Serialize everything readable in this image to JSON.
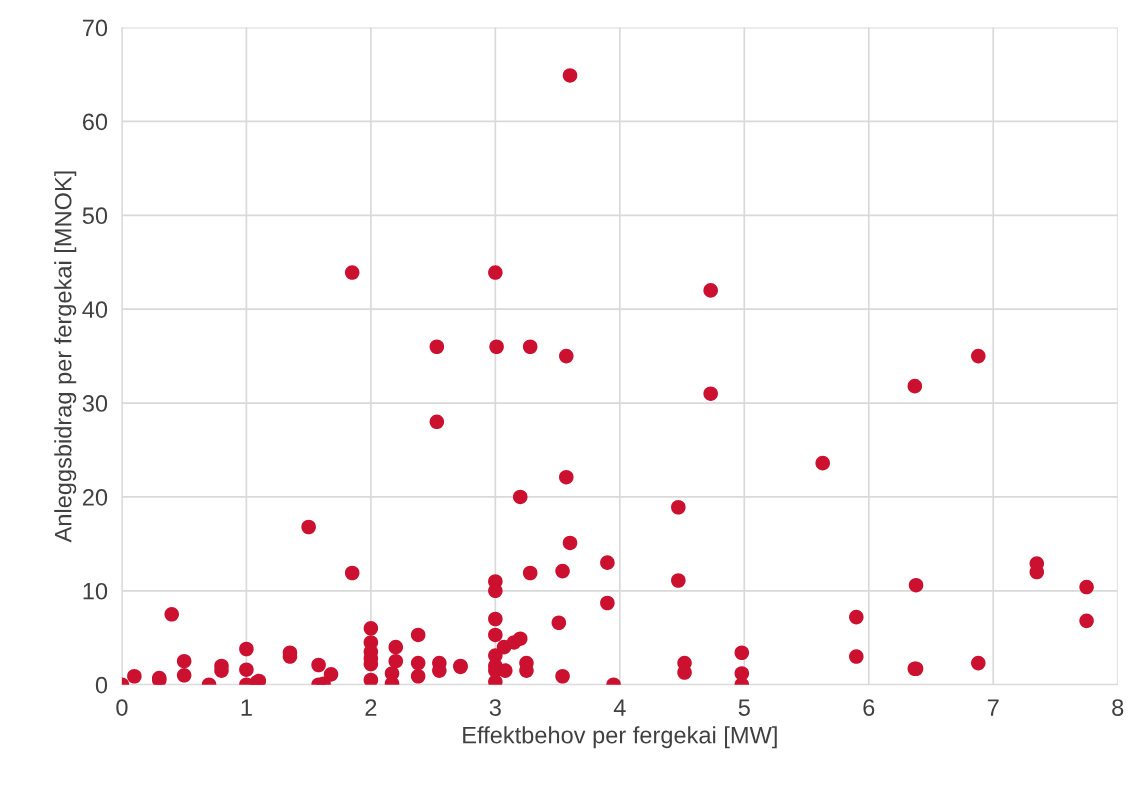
{
  "chart_data": {
    "type": "scatter",
    "xlabel": "Effektbehov per fergekai [MW]",
    "ylabel": "Anleggsbidrag per fergekai [MNOK]",
    "xlim": [
      0,
      8
    ],
    "xticks": [
      0,
      1,
      2,
      3,
      4,
      5,
      6,
      7,
      8
    ],
    "ylim": [
      0,
      70
    ],
    "yticks": [
      0,
      10,
      20,
      30,
      40,
      50,
      60,
      70
    ],
    "grid": true,
    "marker": "circle",
    "series": [
      {
        "color": "#cc1030",
        "x": [
          0,
          0.1,
          0.3,
          0.3,
          0.4,
          0.5,
          0.5,
          0.7,
          0.8,
          0.8,
          1.0,
          1.0,
          1.0,
          1.1,
          1.08,
          1.35,
          1.35,
          1.5,
          1.58,
          1.58,
          1.62,
          1.68,
          1.85,
          1.85,
          2.0,
          2.0,
          2.0,
          2.0,
          2.0,
          2.0,
          2.17,
          2.17,
          2.2,
          2.2,
          2.38,
          2.38,
          2.38,
          2.53,
          2.53,
          2.55,
          2.55,
          2.72,
          2.72,
          3.0,
          3.01,
          3.0,
          3.0,
          3.0,
          3.0,
          3.0,
          3.0,
          3.0,
          3.0,
          3.07,
          3.08,
          3.15,
          3.2,
          3.2,
          3.25,
          3.25,
          3.28,
          3.28,
          3.51,
          3.54,
          3.54,
          3.57,
          3.57,
          3.6,
          3.6,
          3.9,
          3.9,
          3.95,
          4.47,
          4.47,
          4.52,
          4.52,
          4.73,
          4.73,
          4.98,
          4.98,
          4.98,
          5.63,
          5.9,
          5.9,
          6.37,
          6.38,
          6.37,
          6.38,
          6.88,
          6.88,
          7.35,
          7.35,
          7.75,
          7.75
        ],
        "values": [
          0,
          0.9,
          0.7,
          0.5,
          7.5,
          2.5,
          1.0,
          0,
          2.0,
          1.5,
          3.8,
          1.6,
          0,
          0.4,
          0.2,
          3.4,
          3.0,
          16.8,
          2.1,
          0,
          0.1,
          1.1,
          43.9,
          11.9,
          6.0,
          4.5,
          3.5,
          2.8,
          2.2,
          0.5,
          1.2,
          0.1,
          4.0,
          2.5,
          5.3,
          2.3,
          0.9,
          36,
          28,
          2.3,
          1.5,
          2.0,
          1.9,
          43.9,
          36,
          11.0,
          10,
          7,
          5.3,
          3.1,
          2.0,
          1.5,
          0.3,
          4.0,
          1.5,
          4.5,
          20,
          4.9,
          2.3,
          1.5,
          36,
          11.9,
          6.6,
          12.1,
          0.9,
          35,
          22.1,
          64.9,
          15.1,
          13,
          8.7,
          0,
          18.9,
          11.1,
          2.3,
          1.3,
          42,
          31,
          3.4,
          1.2,
          0,
          23.6,
          7.2,
          3.0,
          31.8,
          10.6,
          1.7,
          1.7,
          35,
          2.3,
          12.9,
          12.0,
          10.4,
          6.8
        ]
      }
    ]
  }
}
